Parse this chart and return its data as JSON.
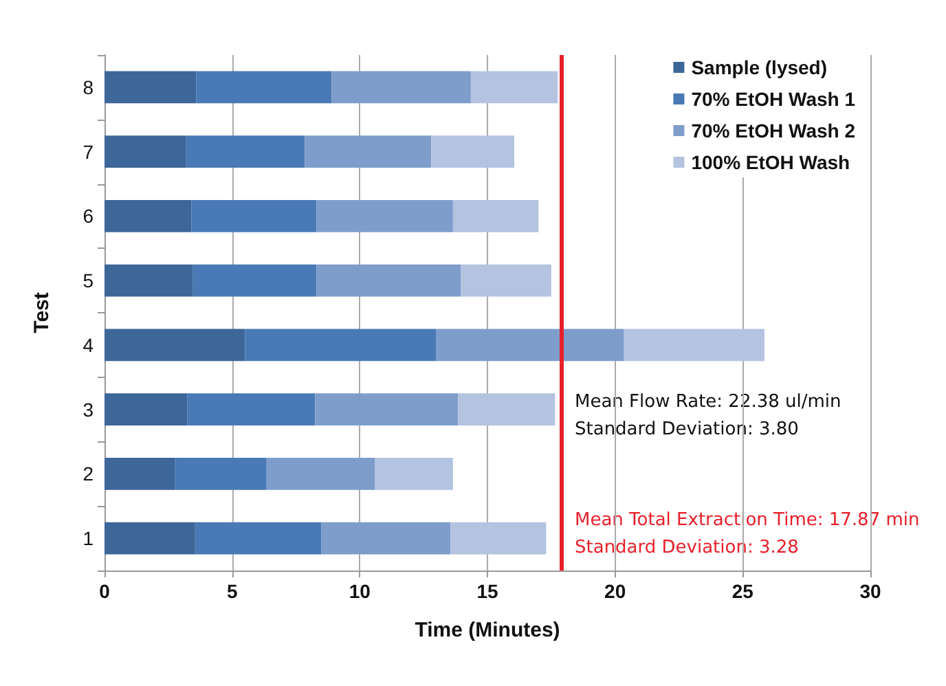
{
  "chart_data": {
    "type": "bar",
    "orientation": "horizontal",
    "stacked": true,
    "xlabel": "Time (Minutes)",
    "ylabel": "Test",
    "categories": [
      "8",
      "7",
      "6",
      "5",
      "4",
      "3",
      "2",
      "1"
    ],
    "series": [
      {
        "name": "Sample (lysed)",
        "color": "#3d6699",
        "values": [
          3.6,
          3.2,
          3.4,
          3.45,
          5.5,
          3.25,
          2.75,
          3.55
        ]
      },
      {
        "name": "70% EtOH Wash 1",
        "color": "#4a7ab5",
        "values": [
          5.3,
          4.65,
          4.9,
          4.85,
          7.5,
          5.0,
          3.6,
          4.95
        ]
      },
      {
        "name": "70% EtOH Wash 2",
        "color": "#7e9dcb",
        "values": [
          5.45,
          4.95,
          5.35,
          5.65,
          7.35,
          5.6,
          4.25,
          5.05
        ]
      },
      {
        "name": "100% EtOH Wash",
        "color": "#b3c3e0",
        "values": [
          3.4,
          3.25,
          3.35,
          3.55,
          5.5,
          3.8,
          3.05,
          3.75
        ]
      }
    ],
    "xlim": [
      0,
      30
    ],
    "xticks": [
      0,
      5,
      10,
      15,
      20,
      25,
      30
    ],
    "ref_lines": [
      {
        "axis": "x",
        "value": 17.87,
        "color": "#e8202a"
      }
    ],
    "annotations": [
      "Mean Flow Rate: 22.38 ul/min",
      "Standard Deviation: 3.80",
      "Mean Total Extraction Time: 17.87 min",
      "Standard Deviation: 3.28"
    ],
    "grid": "x",
    "legend": "top right"
  }
}
